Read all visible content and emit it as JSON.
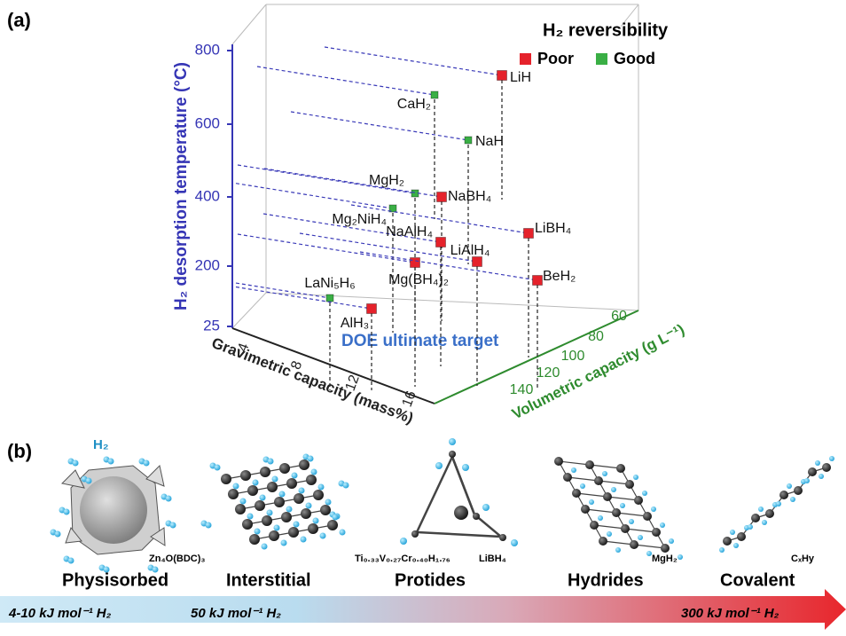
{
  "panel_a": {
    "label": "(a)",
    "y_axis": {
      "title": "H₂ desorption temperature (°C)",
      "ticks": [
        "800",
        "600",
        "400",
        "200",
        "25"
      ]
    },
    "x_axis": {
      "title": "Gravimetric capacity (mass%)",
      "ticks": [
        "4",
        "8",
        "12",
        "16"
      ]
    },
    "z_axis": {
      "title": "Volumetric capacity (g L⁻¹)",
      "ticks": [
        "60",
        "80",
        "100",
        "120",
        "140"
      ]
    },
    "legend": {
      "title": "H₂ reversibility",
      "entries": [
        {
          "label": "Poor",
          "color": "#e5222b"
        },
        {
          "label": "Good",
          "color": "#3aaf45"
        }
      ]
    },
    "points": [
      {
        "label": "LiH",
        "reversibility": 0
      },
      {
        "label": "CaH₂",
        "reversibility": 1
      },
      {
        "label": "NaH",
        "reversibility": 1
      },
      {
        "label": "MgH₂",
        "reversibility": 1
      },
      {
        "label": "NaBH₄",
        "reversibility": 0
      },
      {
        "label": "Mg₂NiH₄",
        "reversibility": 1
      },
      {
        "label": "NaAlH₄",
        "reversibility": 0
      },
      {
        "label": "LiBH₄",
        "reversibility": 0
      },
      {
        "label": "LiAlH₄",
        "reversibility": 0
      },
      {
        "label": "Mg(BH₄)₂",
        "reversibility": 0
      },
      {
        "label": "BeH₂",
        "reversibility": 0
      },
      {
        "label": "LaNi₅H₆",
        "reversibility": 1
      },
      {
        "label": "AlH₃",
        "reversibility": 0
      }
    ],
    "target": "DOE ultimate target"
  },
  "panel_b": {
    "label": "(b)",
    "gas": "H₂",
    "classes": [
      {
        "name": "Physisorbed",
        "example": "Zn₄O(BDC)₃"
      },
      {
        "name": "Interstitial",
        "example": "Ti₀.₃₃V₀.₂₇Cr₀.₄₀H₁.₇₆"
      },
      {
        "name": "Protides",
        "example": "LiBH₄"
      },
      {
        "name": "Hydrides",
        "example": "MgH₂"
      },
      {
        "name": "Covalent",
        "example": "CₓHy"
      }
    ],
    "energies": [
      "4-10 kJ mol⁻¹ H₂",
      "50 kJ mol⁻¹ H₂",
      "300 kJ mol⁻¹ H₂"
    ]
  }
}
